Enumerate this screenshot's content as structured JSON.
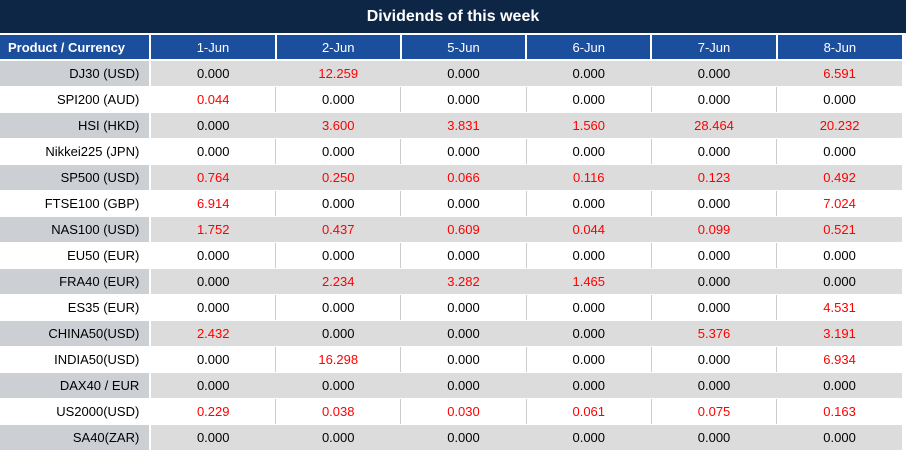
{
  "title": "Dividends of this week",
  "chart_data": {
    "type": "table",
    "title": "Dividends of this week",
    "columns": [
      "Product / Currency",
      "1-Jun",
      "2-Jun",
      "5-Jun",
      "6-Jun",
      "7-Jun",
      "8-Jun"
    ],
    "rows": [
      {
        "product": "DJ30 (USD)",
        "values": [
          "0.000",
          "12.259",
          "0.000",
          "0.000",
          "0.000",
          "6.591"
        ]
      },
      {
        "product": "SPI200 (AUD)",
        "values": [
          "0.044",
          "0.000",
          "0.000",
          "0.000",
          "0.000",
          "0.000"
        ]
      },
      {
        "product": "HSI (HKD)",
        "values": [
          "0.000",
          "3.600",
          "3.831",
          "1.560",
          "28.464",
          "20.232"
        ]
      },
      {
        "product": "Nikkei225 (JPN)",
        "values": [
          "0.000",
          "0.000",
          "0.000",
          "0.000",
          "0.000",
          "0.000"
        ]
      },
      {
        "product": "SP500 (USD)",
        "values": [
          "0.764",
          "0.250",
          "0.066",
          "0.116",
          "0.123",
          "0.492"
        ]
      },
      {
        "product": "FTSE100 (GBP)",
        "values": [
          "6.914",
          "0.000",
          "0.000",
          "0.000",
          "0.000",
          "7.024"
        ]
      },
      {
        "product": "NAS100 (USD)",
        "values": [
          "1.752",
          "0.437",
          "0.609",
          "0.044",
          "0.099",
          "0.521"
        ]
      },
      {
        "product": "EU50 (EUR)",
        "values": [
          "0.000",
          "0.000",
          "0.000",
          "0.000",
          "0.000",
          "0.000"
        ]
      },
      {
        "product": "FRA40 (EUR)",
        "values": [
          "0.000",
          "2.234",
          "3.282",
          "1.465",
          "0.000",
          "0.000"
        ]
      },
      {
        "product": "ES35 (EUR)",
        "values": [
          "0.000",
          "0.000",
          "0.000",
          "0.000",
          "0.000",
          "4.531"
        ]
      },
      {
        "product": "CHINA50(USD)",
        "values": [
          "2.432",
          "0.000",
          "0.000",
          "0.000",
          "5.376",
          "3.191"
        ]
      },
      {
        "product": "INDIA50(USD)",
        "values": [
          "0.000",
          "16.298",
          "0.000",
          "0.000",
          "0.000",
          "6.934"
        ]
      },
      {
        "product": "DAX40 / EUR",
        "values": [
          "0.000",
          "0.000",
          "0.000",
          "0.000",
          "0.000",
          "0.000"
        ]
      },
      {
        "product": "US2000(USD)",
        "values": [
          "0.229",
          "0.038",
          "0.030",
          "0.061",
          "0.075",
          "0.163"
        ]
      },
      {
        "product": "SA40(ZAR)",
        "values": [
          "0.000",
          "0.000",
          "0.000",
          "0.000",
          "0.000",
          "0.000"
        ]
      }
    ],
    "value_color_rule": "non-zero dividend values rendered in red, zero values in black",
    "legend_position": "none",
    "grid": "on"
  },
  "colors": {
    "title_bg": "#0D2646",
    "header_bg": "#1B4F9E",
    "header_text": "#FFFFFF",
    "row_bg": "#FFFFFF",
    "row_alt_bg": "#DCDCDC",
    "product_alt_bg": "#CCD0D4",
    "nonzero_value": "#FF0000",
    "zero_value": "#000000"
  }
}
